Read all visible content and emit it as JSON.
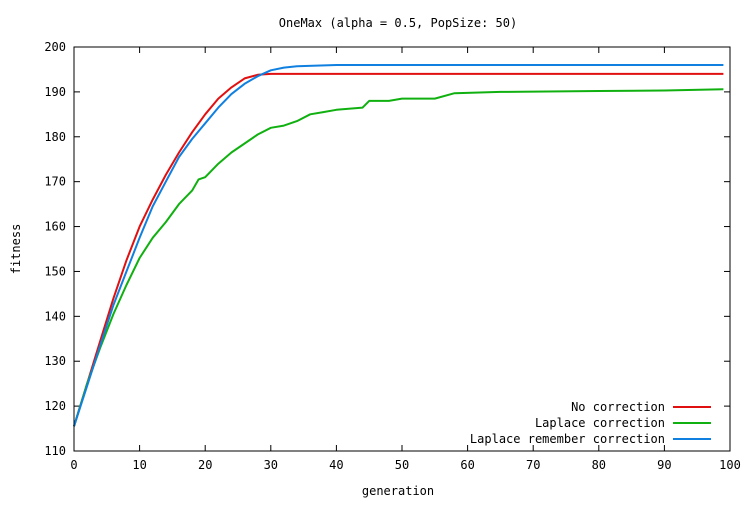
{
  "chart_data": {
    "type": "line",
    "title": "OneMax (alpha = 0.5, PopSize: 50)",
    "xlabel": "generation",
    "ylabel": "fitness",
    "xlim": [
      0,
      100
    ],
    "ylim": [
      110,
      200
    ],
    "xticks": [
      0,
      10,
      20,
      30,
      40,
      50,
      60,
      70,
      80,
      90,
      100
    ],
    "yticks": [
      110,
      120,
      130,
      140,
      150,
      160,
      170,
      180,
      190,
      200
    ],
    "grid": false,
    "legend_position": "bottom-right",
    "series": [
      {
        "name": "No correction",
        "color": "#e01010",
        "points": [
          [
            0,
            115.5
          ],
          [
            2,
            125
          ],
          [
            4,
            134.5
          ],
          [
            6,
            144
          ],
          [
            8,
            152.5
          ],
          [
            10,
            160
          ],
          [
            12,
            166
          ],
          [
            14,
            171.5
          ],
          [
            16,
            176.5
          ],
          [
            18,
            181
          ],
          [
            20,
            185
          ],
          [
            22,
            188.5
          ],
          [
            24,
            191
          ],
          [
            26,
            193
          ],
          [
            28,
            193.8
          ],
          [
            30,
            194
          ],
          [
            99,
            194
          ]
        ]
      },
      {
        "name": "Laplace correction",
        "color": "#10b010",
        "points": [
          [
            0,
            115.5
          ],
          [
            2,
            125
          ],
          [
            4,
            133
          ],
          [
            6,
            140.5
          ],
          [
            8,
            147
          ],
          [
            10,
            153
          ],
          [
            12,
            157.5
          ],
          [
            14,
            161
          ],
          [
            16,
            165
          ],
          [
            18,
            168
          ],
          [
            19,
            170.5
          ],
          [
            20,
            171
          ],
          [
            22,
            174
          ],
          [
            24,
            176.5
          ],
          [
            26,
            178.5
          ],
          [
            28,
            180.5
          ],
          [
            30,
            182
          ],
          [
            32,
            182.5
          ],
          [
            34,
            183.5
          ],
          [
            36,
            185
          ],
          [
            38,
            185.5
          ],
          [
            40,
            186
          ],
          [
            44,
            186.5
          ],
          [
            45,
            188
          ],
          [
            48,
            188
          ],
          [
            50,
            188.5
          ],
          [
            55,
            188.5
          ],
          [
            58,
            189.7
          ],
          [
            65,
            190
          ],
          [
            80,
            190.2
          ],
          [
            90,
            190.3
          ],
          [
            99,
            190.6
          ]
        ]
      },
      {
        "name": "Laplace remember correction",
        "color": "#1080e0",
        "points": [
          [
            0,
            115.5
          ],
          [
            2,
            124.5
          ],
          [
            4,
            133.5
          ],
          [
            6,
            142.5
          ],
          [
            8,
            150
          ],
          [
            10,
            157.5
          ],
          [
            12,
            164.5
          ],
          [
            14,
            170
          ],
          [
            16,
            175.5
          ],
          [
            18,
            179.5
          ],
          [
            20,
            183
          ],
          [
            22,
            186.5
          ],
          [
            24,
            189.5
          ],
          [
            26,
            191.8
          ],
          [
            28,
            193.5
          ],
          [
            30,
            194.8
          ],
          [
            32,
            195.4
          ],
          [
            34,
            195.7
          ],
          [
            40,
            196
          ],
          [
            99,
            196
          ]
        ]
      }
    ]
  }
}
